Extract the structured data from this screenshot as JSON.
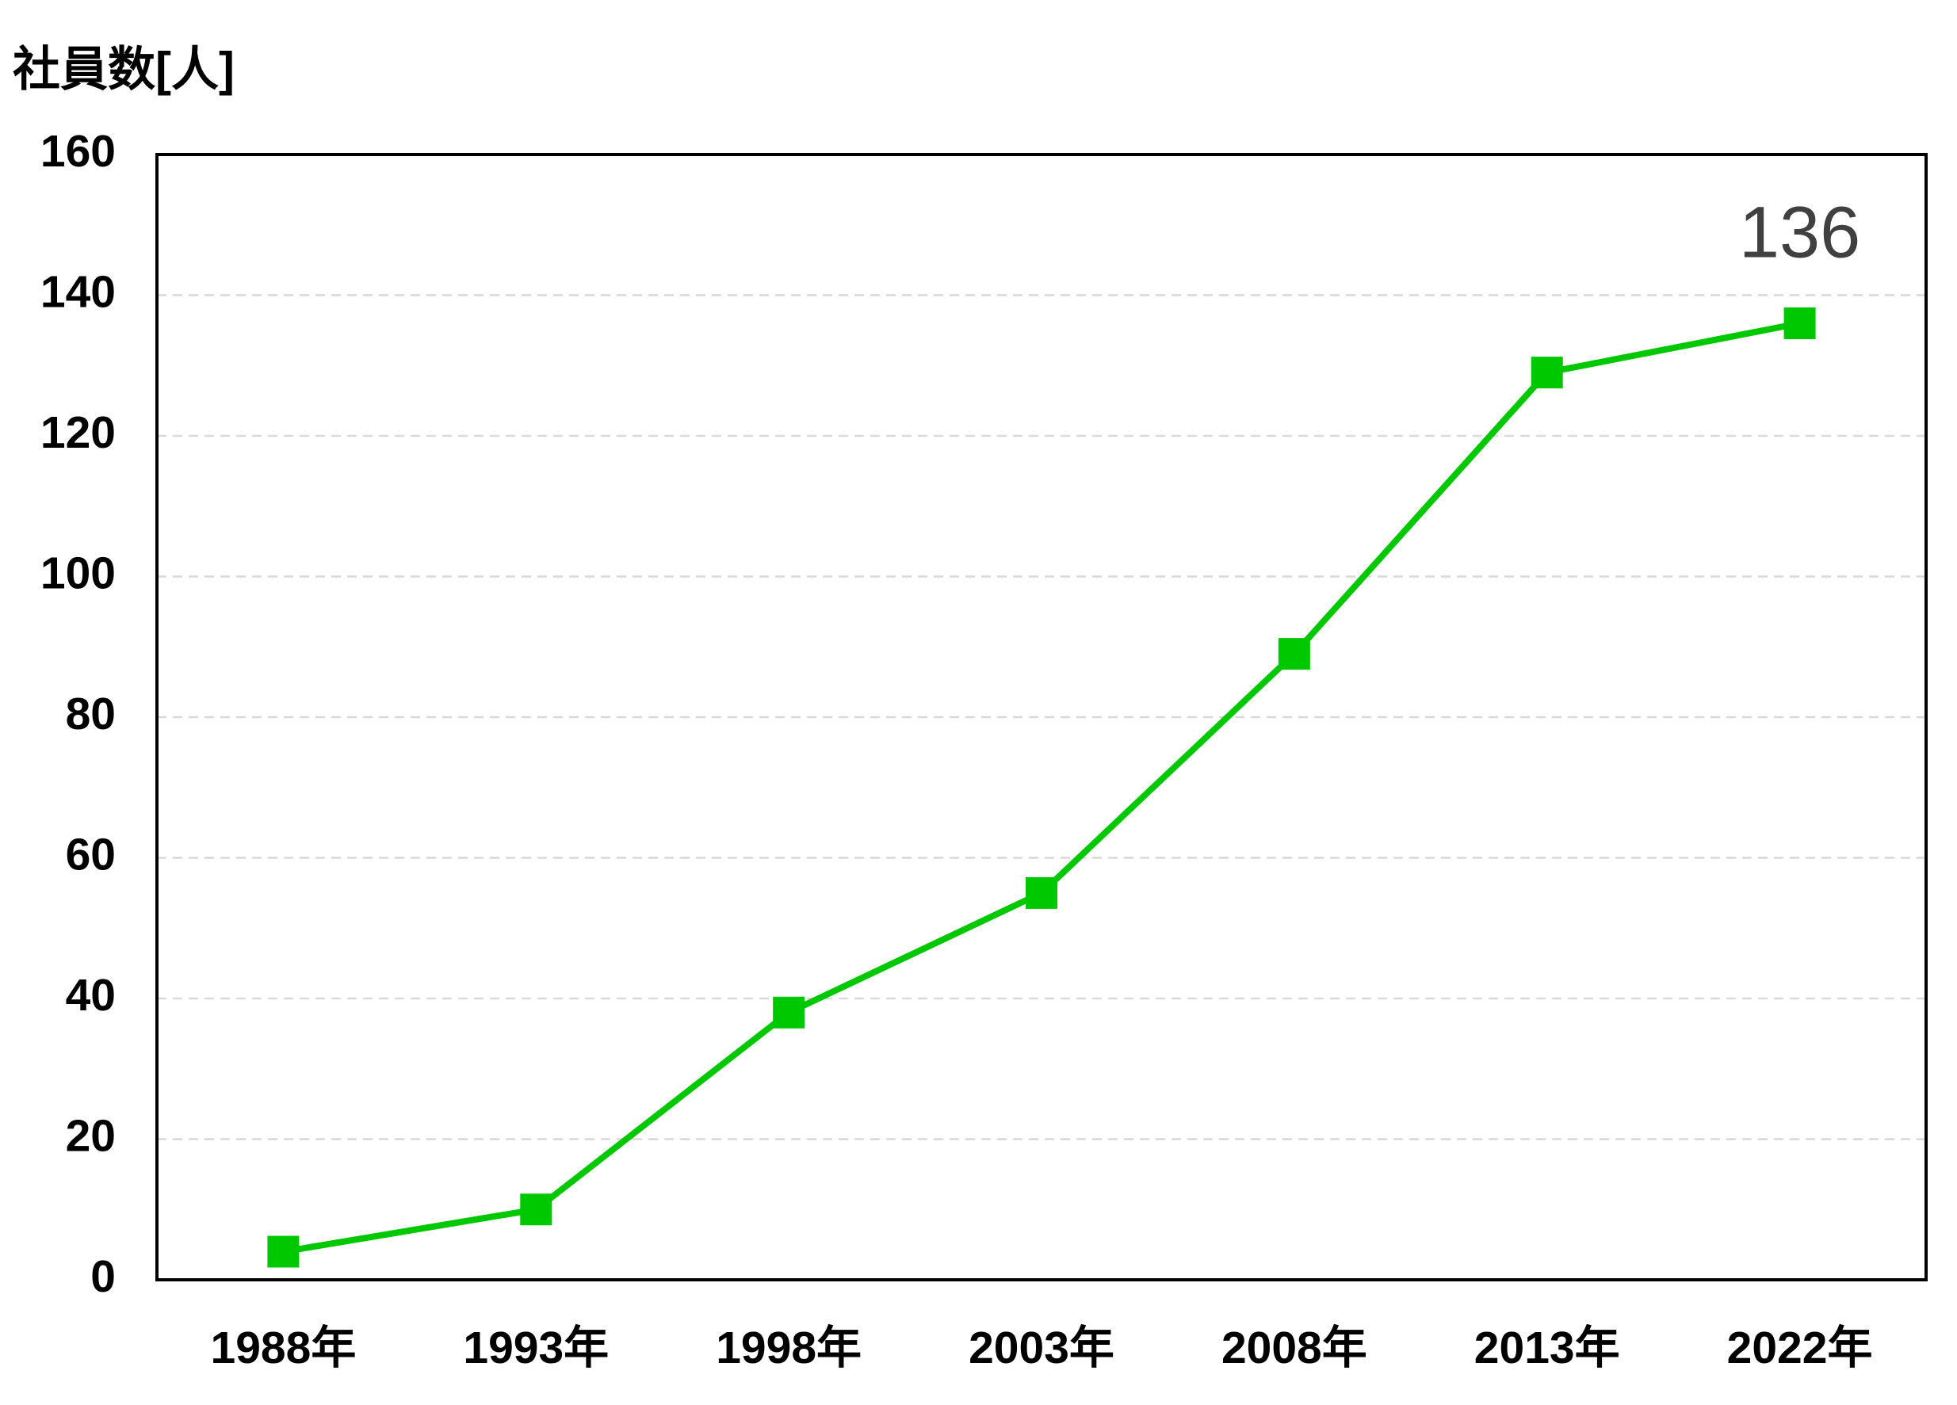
{
  "chart_data": {
    "type": "line",
    "y_label": "社員数[人]",
    "categories": [
      "1988年",
      "1993年",
      "1998年",
      "2003年",
      "2008年",
      "2013年",
      "2022年"
    ],
    "series": [
      {
        "name": "社員数",
        "color": "#00c800",
        "values": [
          4,
          10,
          38,
          55,
          89,
          129,
          136
        ]
      }
    ],
    "ylim": [
      0,
      160
    ],
    "yticks": [
      0,
      20,
      40,
      60,
      80,
      100,
      120,
      140,
      160
    ],
    "grid": true
  }
}
